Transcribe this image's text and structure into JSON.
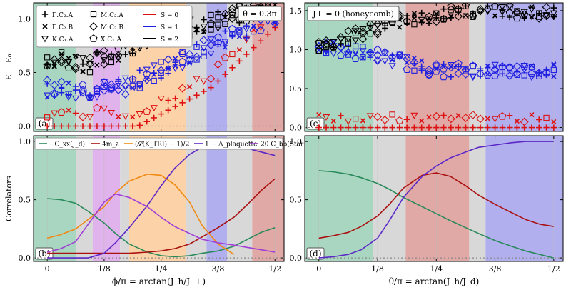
{
  "bands": {
    "gray": "#d8d8d8",
    "green": "#a9d6c0",
    "purple": "#e1b3ec",
    "orange": "#fcd2a8",
    "blue": "#b2afef",
    "red": "#e0a9a6"
  },
  "chart_data": [
    {
      "id": "a",
      "type": "scatter",
      "label": "(a)",
      "annotation": "θ = 0.3π",
      "ylabel": "E − E₀",
      "ylim": [
        -0.05,
        1.15
      ],
      "xlim": [
        -0.03,
        0.52
      ],
      "yticks": [
        "0.0",
        "0.5",
        "1.0"
      ],
      "regions": [
        {
          "from": -0.03,
          "to": 0.0625,
          "color": "green"
        },
        {
          "from": 0.0625,
          "to": 0.1,
          "color": "gray"
        },
        {
          "from": 0.1,
          "to": 0.16,
          "color": "purple"
        },
        {
          "from": 0.16,
          "to": 0.18,
          "color": "gray"
        },
        {
          "from": 0.18,
          "to": 0.305,
          "color": "orange"
        },
        {
          "from": 0.305,
          "to": 0.35,
          "color": "gray"
        },
        {
          "from": 0.35,
          "to": 0.395,
          "color": "blue"
        },
        {
          "from": 0.395,
          "to": 0.45,
          "color": "gray"
        },
        {
          "from": 0.45,
          "to": 0.52,
          "color": "red"
        }
      ],
      "legend_symmetry": [
        "Γ.C₂.A",
        "Γ.C₂.B",
        "K.C₁.A",
        "M.C₂.A",
        "M.C₂.B",
        "X.C₁.A"
      ],
      "legend_spin": [
        "S = 0",
        "S = 1",
        "S = 2"
      ],
      "series": [
        {
          "name": "S = 0",
          "color": "#dd1111",
          "levels": [
            [
              0.0,
              0.0
            ],
            [
              0.2,
              0.0
            ],
            [
              0.36,
              0.36
            ],
            [
              0.52,
              1.0
            ]
          ]
        },
        {
          "name": "S = 1",
          "color": "#1f1fe0",
          "levels": [
            [
              0.0,
              0.32
            ],
            [
              0.15,
              0.3
            ],
            [
              0.28,
              0.55
            ],
            [
              0.52,
              1.05
            ]
          ]
        },
        {
          "name": "S = 2",
          "color": "#000000",
          "levels": [
            [
              0.0,
              0.6
            ],
            [
              0.1,
              0.55
            ],
            [
              0.22,
              0.8
            ],
            [
              0.52,
              1.1
            ]
          ]
        }
      ]
    },
    {
      "id": "c",
      "type": "scatter",
      "label": "(c)",
      "annotation": "J⊥ = 0 (honeycomb)",
      "ylim": [
        -0.05,
        1.6
      ],
      "xlim": [
        -0.03,
        0.52
      ],
      "yticks": [
        "0.0",
        "0.5",
        "1.0",
        "1.5"
      ],
      "regions": [
        {
          "from": -0.03,
          "to": 0.115,
          "color": "green"
        },
        {
          "from": 0.115,
          "to": 0.185,
          "color": "gray"
        },
        {
          "from": 0.185,
          "to": 0.32,
          "color": "red"
        },
        {
          "from": 0.32,
          "to": 0.355,
          "color": "gray"
        },
        {
          "from": 0.355,
          "to": 0.52,
          "color": "blue"
        }
      ],
      "series": [
        {
          "name": "S = 0",
          "color": "#dd1111",
          "levels": [
            [
              0.0,
              0.0
            ],
            [
              0.52,
              0.0
            ]
          ]
        },
        {
          "name": "S = 1",
          "color": "#1f1fe0",
          "levels": [
            [
              0.0,
              1.0
            ],
            [
              0.12,
              0.9
            ],
            [
              0.25,
              0.7
            ],
            [
              0.52,
              0.7
            ]
          ]
        },
        {
          "name": "S = 2",
          "color": "#000000",
          "levels": [
            [
              0.0,
              1.0
            ],
            [
              0.15,
              1.3
            ],
            [
              0.35,
              1.5
            ],
            [
              0.52,
              1.4
            ]
          ]
        }
      ]
    },
    {
      "id": "b",
      "type": "line",
      "label": "(b)",
      "ylabel": "Correlators",
      "xlabel": "ϕ/π = arctan(J_h/J_⊥)",
      "ylim": [
        -0.03,
        1.05
      ],
      "xlim": [
        -0.03,
        0.52
      ],
      "yticks": [
        "0.0",
        "0.5",
        "1.0"
      ],
      "xticks": [
        "0",
        "1/8",
        "1/4",
        "3/8",
        "1/2"
      ],
      "regions": [
        {
          "from": -0.03,
          "to": 0.0625,
          "color": "green"
        },
        {
          "from": 0.0625,
          "to": 0.1,
          "color": "gray"
        },
        {
          "from": 0.1,
          "to": 0.16,
          "color": "purple"
        },
        {
          "from": 0.16,
          "to": 0.18,
          "color": "gray"
        },
        {
          "from": 0.18,
          "to": 0.305,
          "color": "orange"
        },
        {
          "from": 0.305,
          "to": 0.35,
          "color": "gray"
        },
        {
          "from": 0.35,
          "to": 0.395,
          "color": "blue"
        },
        {
          "from": 0.395,
          "to": 0.45,
          "color": "gray"
        },
        {
          "from": 0.45,
          "to": 0.52,
          "color": "red"
        }
      ],
      "legend": [
        "−C_xx(J_d)",
        "4m_z",
        "(𝓢(K_TRI) − 1)/2",
        "1 − Δ_plaquette",
        "20 C_bb(Star VBS)"
      ],
      "x": [
        0.0,
        0.03,
        0.0625,
        0.09,
        0.125,
        0.15,
        0.18,
        0.22,
        0.25,
        0.28,
        0.3125,
        0.34,
        0.375,
        0.41,
        0.44,
        0.47,
        0.5
      ],
      "series": [
        {
          "name": "−C_xx(J_d)",
          "color": "#2a8a5b",
          "values": [
            0.51,
            0.5,
            0.47,
            0.4,
            0.3,
            0.21,
            0.12,
            0.05,
            0.02,
            0.01,
            0.02,
            0.04,
            0.06,
            0.1,
            0.16,
            0.22,
            0.26
          ]
        },
        {
          "name": "4m_z",
          "color": "#aa1111",
          "values": [
            0.04,
            0.04,
            0.04,
            0.04,
            0.04,
            0.04,
            0.04,
            0.05,
            0.06,
            0.08,
            0.12,
            0.18,
            0.26,
            0.35,
            0.46,
            0.58,
            0.68
          ]
        },
        {
          "name": "(𝓢(K_TRI) − 1)/2",
          "color": "#f08a12",
          "values": [
            0.17,
            0.2,
            0.25,
            0.33,
            0.44,
            0.56,
            0.66,
            0.72,
            0.71,
            0.63,
            0.48,
            0.28,
            0.12,
            0.03,
            null,
            null,
            null
          ]
        },
        {
          "name": "1 − Δ_plaquette",
          "color": "#5b28c8",
          "values": [
            0.0,
            0.0,
            0.0,
            0.0,
            0.04,
            0.13,
            0.26,
            0.45,
            0.62,
            0.77,
            0.89,
            0.95,
            0.97,
            0.96,
            0.94,
            0.91,
            0.88
          ]
        },
        {
          "name": "20 C_bb(Star VBS)",
          "color": "#a03dd6",
          "values": [
            0.05,
            0.08,
            0.14,
            0.29,
            0.48,
            0.55,
            0.52,
            0.44,
            0.35,
            0.27,
            0.21,
            0.16,
            0.13,
            0.11,
            0.09,
            0.07,
            0.05
          ]
        }
      ]
    },
    {
      "id": "d",
      "type": "line",
      "label": "(d)",
      "xlabel": "θ/π = arctan(J_h/J_d)",
      "ylim": [
        -0.03,
        1.05
      ],
      "xlim": [
        -0.03,
        0.52
      ],
      "yticks": [
        "0.0",
        "0.5",
        "1.0"
      ],
      "xticks": [
        "0",
        "1/8",
        "1/4",
        "3/8",
        "1/2"
      ],
      "regions": [
        {
          "from": -0.03,
          "to": 0.115,
          "color": "green"
        },
        {
          "from": 0.115,
          "to": 0.185,
          "color": "gray"
        },
        {
          "from": 0.185,
          "to": 0.32,
          "color": "red"
        },
        {
          "from": 0.32,
          "to": 0.355,
          "color": "gray"
        },
        {
          "from": 0.355,
          "to": 0.52,
          "color": "blue"
        }
      ],
      "x": [
        0.0,
        0.03,
        0.0625,
        0.09,
        0.125,
        0.15,
        0.18,
        0.22,
        0.25,
        0.28,
        0.3125,
        0.34,
        0.375,
        0.41,
        0.44,
        0.47,
        0.5
      ],
      "series": [
        {
          "name": "−C_xx(J_d)",
          "color": "#2a8a5b",
          "values": [
            0.75,
            0.74,
            0.72,
            0.69,
            0.64,
            0.59,
            0.52,
            0.44,
            0.38,
            0.32,
            0.26,
            0.21,
            0.15,
            0.1,
            0.06,
            0.03,
            0.0
          ]
        },
        {
          "name": "4m_z",
          "color": "#aa1111",
          "values": [
            0.17,
            0.19,
            0.22,
            0.27,
            0.36,
            0.46,
            0.6,
            0.71,
            0.73,
            0.7,
            0.62,
            0.54,
            0.46,
            0.39,
            0.33,
            0.29,
            0.27
          ]
        },
        {
          "name": "1 − Δ_plaquette",
          "color": "#5b28c8",
          "values": [
            0.0,
            0.01,
            0.03,
            0.07,
            0.17,
            0.32,
            0.52,
            0.7,
            0.79,
            0.86,
            0.91,
            0.95,
            0.97,
            0.99,
            1.0,
            1.0,
            1.0
          ]
        }
      ]
    }
  ]
}
